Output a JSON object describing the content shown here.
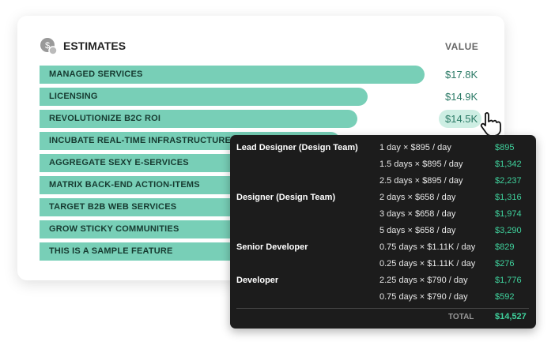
{
  "estimates": {
    "title": "ESTIMATES",
    "value_header": "VALUE",
    "rows": [
      {
        "label": "MANAGED SERVICES",
        "value": "$17.8K"
      },
      {
        "label": "LICENSING",
        "value": "$14.9K"
      },
      {
        "label": "REVOLUTIONIZE B2C ROI",
        "value": "$14.5K"
      },
      {
        "label": "INCUBATE REAL-TIME INFRASTRUCTURES"
      },
      {
        "label": "AGGREGATE SEXY E-SERVICES"
      },
      {
        "label": "MATRIX BACK-END ACTION-ITEMS"
      },
      {
        "label": "TARGET B2B WEB SERVICES"
      },
      {
        "label": "GROW STICKY COMMUNITIES"
      },
      {
        "label": "THIS IS A SAMPLE FEATURE"
      }
    ]
  },
  "tooltip": {
    "groups": [
      {
        "role": "Lead Designer (Design Team)",
        "lines": [
          {
            "calc": "1 day × $895 / day",
            "amount": "$895"
          },
          {
            "calc": "1.5 days × $895 / day",
            "amount": "$1,342"
          },
          {
            "calc": "2.5 days × $895 / day",
            "amount": "$2,237"
          }
        ]
      },
      {
        "role": "Designer (Design Team)",
        "lines": [
          {
            "calc": "2 days × $658 / day",
            "amount": "$1,316"
          },
          {
            "calc": "3 days × $658 / day",
            "amount": "$1,974"
          },
          {
            "calc": "5 days × $658 / day",
            "amount": "$3,290"
          }
        ]
      },
      {
        "role": "Senior Developer",
        "lines": [
          {
            "calc": "0.75 days × $1.11K / day",
            "amount": "$829"
          },
          {
            "calc": "0.25 days × $1.11K / day",
            "amount": "$276"
          }
        ]
      },
      {
        "role": "Developer",
        "lines": [
          {
            "calc": "2.25 days × $790 / day",
            "amount": "$1,776"
          },
          {
            "calc": "0.75 days × $790 / day",
            "amount": "$592"
          }
        ]
      }
    ],
    "total_label": "TOTAL",
    "total": "$14,527"
  }
}
